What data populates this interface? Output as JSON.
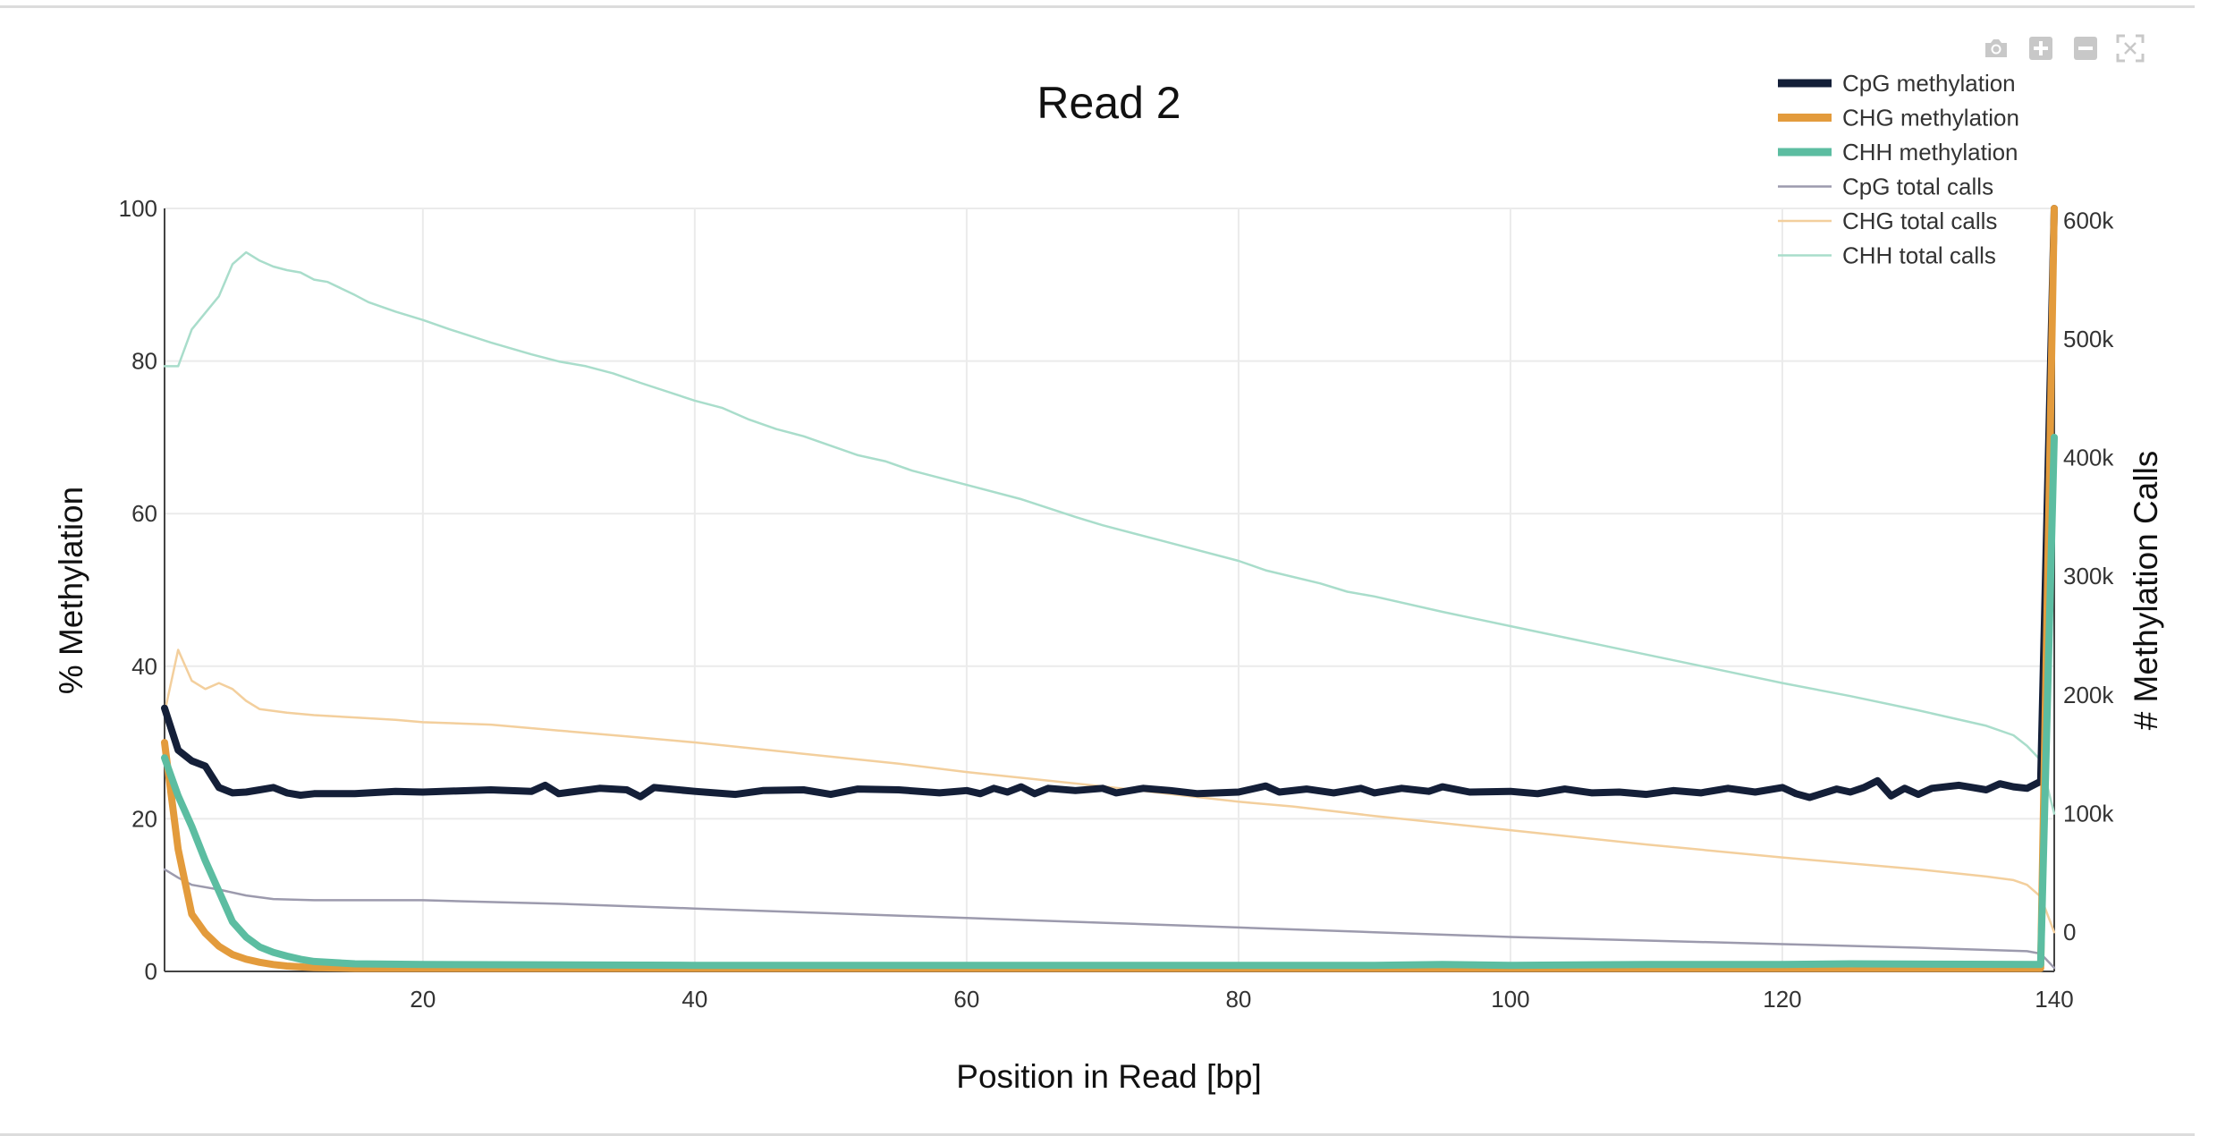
{
  "modebar": {
    "camera_icon": "camera-icon",
    "zoom_in_icon": "zoom-in-icon",
    "zoom_out_icon": "zoom-out-icon",
    "autoscale_icon": "autoscale-icon",
    "icon_color": "#c8c8c8"
  },
  "chart_data": {
    "type": "line",
    "title": "Read 2",
    "xlabel": "Position in Read [bp]",
    "ylabel": "% Methylation",
    "y2label": "# Methylation Calls",
    "xlim": [
      1,
      140
    ],
    "ylim": [
      0,
      100
    ],
    "y2lim": [
      -33000,
      610000
    ],
    "xticks": [
      20,
      40,
      60,
      80,
      100,
      120,
      140
    ],
    "yticks": [
      0,
      20,
      40,
      60,
      80,
      100
    ],
    "y2ticks": [
      0,
      100000,
      200000,
      300000,
      400000,
      500000,
      600000
    ],
    "y2ticklabels": [
      "0",
      "100k",
      "200k",
      "300k",
      "400k",
      "500k",
      "600k"
    ],
    "grid": true,
    "legend_position": "top-right",
    "series": [
      {
        "name": "CpG methylation",
        "axis": "y",
        "color": "#141f38",
        "width": "thick",
        "points": [
          [
            1,
            34.5
          ],
          [
            2,
            29
          ],
          [
            3,
            27.6
          ],
          [
            4,
            26.9
          ],
          [
            5,
            24.1
          ],
          [
            6,
            23.4
          ],
          [
            7,
            23.5
          ],
          [
            8,
            23.8
          ],
          [
            9,
            24.1
          ],
          [
            10,
            23.4
          ],
          [
            11,
            23.1
          ],
          [
            12,
            23.3
          ],
          [
            15,
            23.3
          ],
          [
            18,
            23.6
          ],
          [
            20,
            23.5
          ],
          [
            25,
            23.8
          ],
          [
            28,
            23.6
          ],
          [
            29,
            24.4
          ],
          [
            30,
            23.3
          ],
          [
            33,
            24.0
          ],
          [
            35,
            23.8
          ],
          [
            36,
            22.9
          ],
          [
            37,
            24.1
          ],
          [
            40,
            23.6
          ],
          [
            43,
            23.2
          ],
          [
            45,
            23.7
          ],
          [
            48,
            23.8
          ],
          [
            50,
            23.2
          ],
          [
            52,
            23.9
          ],
          [
            55,
            23.8
          ],
          [
            58,
            23.4
          ],
          [
            60,
            23.7
          ],
          [
            61,
            23.3
          ],
          [
            62,
            24.0
          ],
          [
            63,
            23.5
          ],
          [
            64,
            24.2
          ],
          [
            65,
            23.3
          ],
          [
            66,
            24.0
          ],
          [
            68,
            23.7
          ],
          [
            70,
            24.0
          ],
          [
            71,
            23.4
          ],
          [
            73,
            24.0
          ],
          [
            75,
            23.7
          ],
          [
            77,
            23.3
          ],
          [
            80,
            23.5
          ],
          [
            82,
            24.3
          ],
          [
            83,
            23.5
          ],
          [
            85,
            23.9
          ],
          [
            87,
            23.4
          ],
          [
            89,
            24.0
          ],
          [
            90,
            23.4
          ],
          [
            92,
            24.0
          ],
          [
            94,
            23.6
          ],
          [
            95,
            24.2
          ],
          [
            97,
            23.5
          ],
          [
            100,
            23.6
          ],
          [
            102,
            23.3
          ],
          [
            104,
            23.9
          ],
          [
            106,
            23.4
          ],
          [
            108,
            23.5
          ],
          [
            110,
            23.2
          ],
          [
            112,
            23.7
          ],
          [
            114,
            23.4
          ],
          [
            116,
            24.0
          ],
          [
            118,
            23.5
          ],
          [
            120,
            24.1
          ],
          [
            121,
            23.3
          ],
          [
            122,
            22.8
          ],
          [
            124,
            23.9
          ],
          [
            125,
            23.5
          ],
          [
            126,
            24.1
          ],
          [
            127,
            25.0
          ],
          [
            128,
            23.0
          ],
          [
            129,
            24.0
          ],
          [
            130,
            23.2
          ],
          [
            131,
            24.0
          ],
          [
            133,
            24.4
          ],
          [
            134,
            24.1
          ],
          [
            135,
            23.8
          ],
          [
            136,
            24.6
          ],
          [
            137,
            24.2
          ],
          [
            138,
            24.0
          ],
          [
            139,
            24.9
          ],
          [
            140,
            100
          ]
        ]
      },
      {
        "name": "CHG methylation",
        "axis": "y",
        "color": "#e39b3c",
        "width": "thick",
        "points": [
          [
            1,
            30
          ],
          [
            2,
            16
          ],
          [
            3,
            7.5
          ],
          [
            4,
            5
          ],
          [
            5,
            3.3
          ],
          [
            6,
            2.2
          ],
          [
            7,
            1.6
          ],
          [
            8,
            1.2
          ],
          [
            9,
            0.9
          ],
          [
            10,
            0.7
          ],
          [
            12,
            0.5
          ],
          [
            15,
            0.4
          ],
          [
            20,
            0.4
          ],
          [
            40,
            0.4
          ],
          [
            60,
            0.4
          ],
          [
            80,
            0.4
          ],
          [
            100,
            0.4
          ],
          [
            120,
            0.4
          ],
          [
            139,
            0.4
          ],
          [
            140,
            100
          ]
        ]
      },
      {
        "name": "CHH methylation",
        "axis": "y",
        "color": "#5cbda1",
        "width": "thick",
        "points": [
          [
            1,
            28
          ],
          [
            2,
            23
          ],
          [
            3,
            19
          ],
          [
            4,
            14.5
          ],
          [
            5,
            10.5
          ],
          [
            6,
            6.5
          ],
          [
            7,
            4.5
          ],
          [
            8,
            3.2
          ],
          [
            9,
            2.5
          ],
          [
            10,
            2
          ],
          [
            11,
            1.6
          ],
          [
            12,
            1.3
          ],
          [
            13,
            1.2
          ],
          [
            15,
            1.0
          ],
          [
            20,
            0.9
          ],
          [
            40,
            0.8
          ],
          [
            60,
            0.8
          ],
          [
            80,
            0.8
          ],
          [
            90,
            0.8
          ],
          [
            95,
            0.9
          ],
          [
            100,
            0.8
          ],
          [
            110,
            0.9
          ],
          [
            120,
            0.9
          ],
          [
            125,
            1.0
          ],
          [
            139,
            0.9
          ],
          [
            140,
            70
          ]
        ]
      },
      {
        "name": "CpG total calls",
        "axis": "y2",
        "color": "#9c9aad",
        "width": "thin",
        "points": [
          [
            1,
            53000
          ],
          [
            2,
            46000
          ],
          [
            3,
            40000
          ],
          [
            5,
            36000
          ],
          [
            7,
            31000
          ],
          [
            9,
            28000
          ],
          [
            12,
            27000
          ],
          [
            20,
            27000
          ],
          [
            30,
            24000
          ],
          [
            40,
            20000
          ],
          [
            50,
            16000
          ],
          [
            60,
            12000
          ],
          [
            70,
            8000
          ],
          [
            80,
            4000
          ],
          [
            90,
            0
          ],
          [
            100,
            -4000
          ],
          [
            110,
            -7000
          ],
          [
            120,
            -10000
          ],
          [
            130,
            -13000
          ],
          [
            138,
            -16000
          ],
          [
            139,
            -18000
          ],
          [
            140,
            -30000
          ]
        ]
      },
      {
        "name": "CHG total calls",
        "axis": "y2",
        "color": "#f3cf9d",
        "width": "thin",
        "points": [
          [
            1,
            185000
          ],
          [
            2,
            238000
          ],
          [
            3,
            212000
          ],
          [
            4,
            205000
          ],
          [
            5,
            210000
          ],
          [
            6,
            205000
          ],
          [
            7,
            195000
          ],
          [
            8,
            188000
          ],
          [
            10,
            185000
          ],
          [
            12,
            183000
          ],
          [
            15,
            181000
          ],
          [
            18,
            179000
          ],
          [
            20,
            177000
          ],
          [
            25,
            175000
          ],
          [
            30,
            170000
          ],
          [
            35,
            165000
          ],
          [
            40,
            160000
          ],
          [
            45,
            154000
          ],
          [
            50,
            148000
          ],
          [
            55,
            142000
          ],
          [
            60,
            135000
          ],
          [
            70,
            123000
          ],
          [
            80,
            110000
          ],
          [
            84,
            106000
          ],
          [
            90,
            98000
          ],
          [
            100,
            86000
          ],
          [
            110,
            74000
          ],
          [
            120,
            63000
          ],
          [
            125,
            58000
          ],
          [
            130,
            53000
          ],
          [
            135,
            47000
          ],
          [
            137,
            44000
          ],
          [
            138,
            40000
          ],
          [
            139,
            30000
          ],
          [
            140,
            0
          ]
        ]
      },
      {
        "name": "CHH total calls",
        "axis": "y2",
        "color": "#a9ddcb",
        "width": "thin",
        "points": [
          [
            1,
            477000
          ],
          [
            2,
            477000
          ],
          [
            3,
            508000
          ],
          [
            4,
            522000
          ],
          [
            5,
            536000
          ],
          [
            6,
            563000
          ],
          [
            7,
            573000
          ],
          [
            8,
            566000
          ],
          [
            9,
            561000
          ],
          [
            10,
            558000
          ],
          [
            11,
            556000
          ],
          [
            12,
            550000
          ],
          [
            13,
            548000
          ],
          [
            15,
            537000
          ],
          [
            16,
            531000
          ],
          [
            18,
            523000
          ],
          [
            20,
            516000
          ],
          [
            22,
            508000
          ],
          [
            25,
            497000
          ],
          [
            28,
            487000
          ],
          [
            30,
            481000
          ],
          [
            32,
            477000
          ],
          [
            34,
            471000
          ],
          [
            36,
            463000
          ],
          [
            40,
            448000
          ],
          [
            42,
            442000
          ],
          [
            44,
            432000
          ],
          [
            46,
            424000
          ],
          [
            48,
            418000
          ],
          [
            50,
            410000
          ],
          [
            52,
            402000
          ],
          [
            54,
            397000
          ],
          [
            56,
            389000
          ],
          [
            60,
            377000
          ],
          [
            64,
            365000
          ],
          [
            68,
            350000
          ],
          [
            70,
            343000
          ],
          [
            74,
            331000
          ],
          [
            76,
            325000
          ],
          [
            80,
            313000
          ],
          [
            82,
            305000
          ],
          [
            86,
            294000
          ],
          [
            88,
            287000
          ],
          [
            90,
            283000
          ],
          [
            95,
            270000
          ],
          [
            100,
            258000
          ],
          [
            105,
            246000
          ],
          [
            110,
            234000
          ],
          [
            115,
            222000
          ],
          [
            120,
            210000
          ],
          [
            125,
            199000
          ],
          [
            130,
            187000
          ],
          [
            135,
            174000
          ],
          [
            137,
            166000
          ],
          [
            138,
            157000
          ],
          [
            139,
            145000
          ],
          [
            140,
            100000
          ]
        ]
      }
    ]
  }
}
